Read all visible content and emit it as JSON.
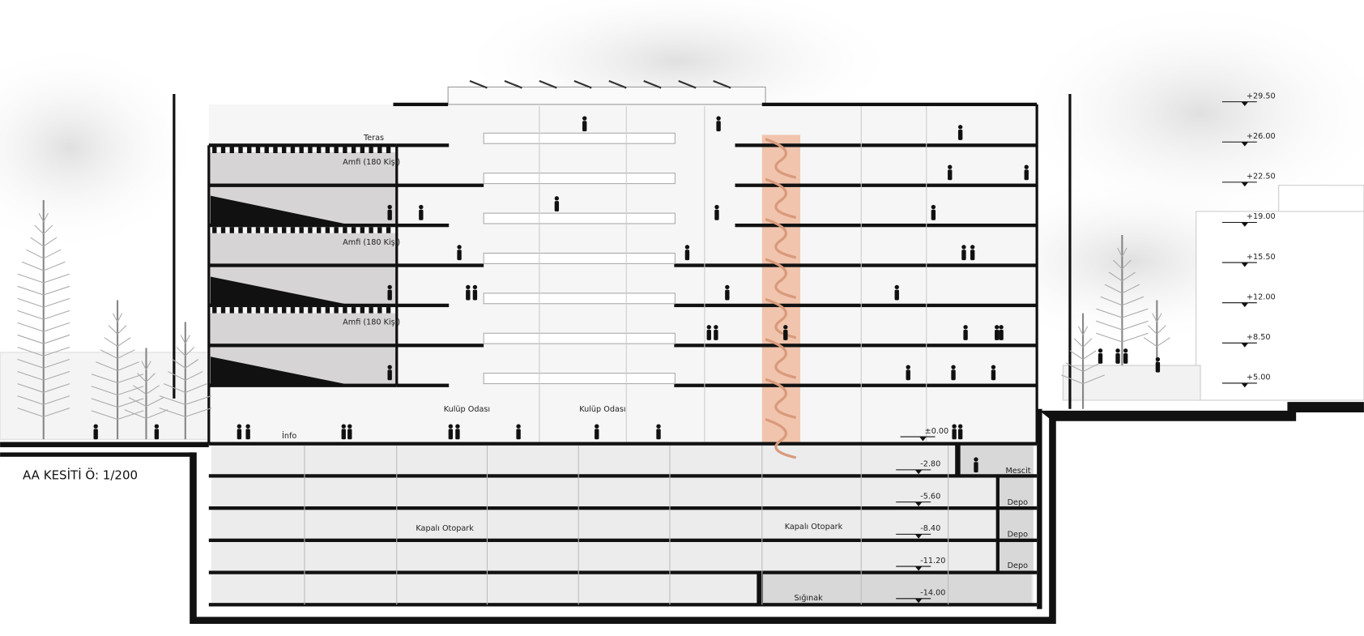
{
  "title": "AA KESİTİ Ö: 1/200",
  "spaces": {
    "terrace": "Teras",
    "amphitheaters": [
      "Amfi (180 Kişi)",
      "Amfi (180 Kişi)",
      "Amfi (180 Kişi)"
    ],
    "club_rooms": [
      "Kulüp Odası",
      "Kulüp Odası"
    ],
    "info": "İnfo",
    "prayer_room": "Mescit",
    "storage": [
      "Depo",
      "Depo",
      "Depo"
    ],
    "parking": [
      "Kapalı Otopark",
      "Kapalı Otopark"
    ],
    "shelter": "Sığınak"
  },
  "elevations": {
    "above": [
      "+29.50",
      "+26.00",
      "+22.50",
      "+19.00",
      "+15.50",
      "+12.00",
      "+8.50",
      "+5.00"
    ],
    "ground": "±0.00",
    "below": [
      "-2.80",
      "-5.60",
      "-8.40",
      "-11.20",
      "-14.00"
    ]
  }
}
